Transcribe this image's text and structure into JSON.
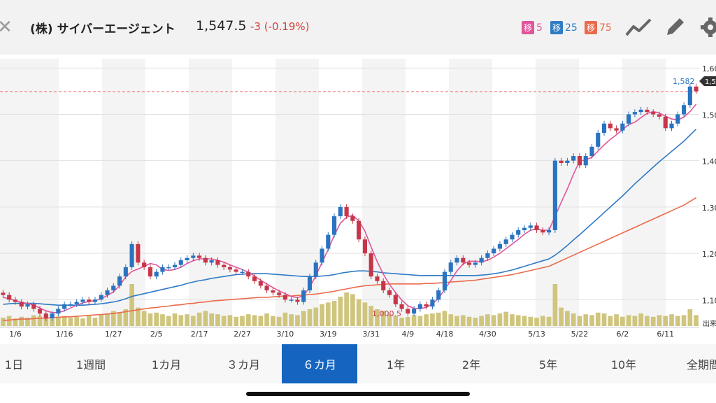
{
  "header": {
    "close_icon": "close-icon",
    "stock_name": "(株) サイバーエージェント",
    "price": "1,547.5",
    "change": "-3 (-0.19%)",
    "ma_badges": [
      {
        "tag": "移",
        "value": "5",
        "color": "#e0559c"
      },
      {
        "tag": "移",
        "value": "25",
        "color": "#2f7bc4"
      },
      {
        "tag": "移",
        "value": "75",
        "color": "#ea6b4b"
      }
    ],
    "tools": [
      "line-chart-icon",
      "pencil-icon",
      "gear-icon"
    ]
  },
  "annotations": {
    "high_label": "1,582",
    "low_label": "1,000.5",
    "volume_label": "出来",
    "current_tag": "1,5"
  },
  "chart_data": {
    "type": "candlestick",
    "x_ticks": [
      "1/6",
      "1/16",
      "1/27",
      "2/5",
      "2/17",
      "2/27",
      "3/10",
      "3/19",
      "3/31",
      "4/9",
      "4/18",
      "4/30",
      "5/13",
      "5/22",
      "6/2",
      "6/11"
    ],
    "y_ticks": [
      "1,60",
      "1,50",
      "1,40",
      "1,30",
      "1,20",
      "1,10"
    ],
    "y_tick_values": [
      1600,
      1500,
      1400,
      1300,
      1200,
      1100
    ],
    "ylim": [
      1040,
      1620
    ],
    "reference_price": 1550,
    "closes": [
      1110,
      1100,
      1095,
      1085,
      1090,
      1080,
      1070,
      1060,
      1070,
      1080,
      1090,
      1090,
      1095,
      1100,
      1095,
      1100,
      1110,
      1120,
      1130,
      1150,
      1170,
      1220,
      1180,
      1170,
      1150,
      1160,
      1170,
      1170,
      1175,
      1185,
      1190,
      1195,
      1190,
      1180,
      1185,
      1175,
      1170,
      1165,
      1160,
      1160,
      1150,
      1140,
      1130,
      1120,
      1115,
      1110,
      1100,
      1100,
      1095,
      1120,
      1150,
      1180,
      1210,
      1240,
      1280,
      1300,
      1280,
      1270,
      1230,
      1200,
      1150,
      1140,
      1120,
      1110,
      1090,
      1080,
      1070,
      1080,
      1090,
      1085,
      1100,
      1120,
      1160,
      1180,
      1190,
      1180,
      1175,
      1180,
      1190,
      1200,
      1210,
      1220,
      1230,
      1240,
      1250,
      1255,
      1260,
      1250,
      1245,
      1250,
      1400,
      1395,
      1400,
      1410,
      1390,
      1410,
      1430,
      1460,
      1480,
      1470,
      1465,
      1480,
      1500,
      1505,
      1510,
      1505,
      1500,
      1495,
      1470,
      1480,
      1500,
      1520,
      1560,
      1550
    ],
    "volumes": [
      10,
      12,
      9,
      11,
      10,
      13,
      12,
      10,
      9,
      11,
      12,
      10,
      11,
      9,
      12,
      10,
      14,
      15,
      18,
      16,
      20,
      50,
      22,
      18,
      15,
      16,
      14,
      12,
      15,
      13,
      14,
      12,
      16,
      18,
      15,
      14,
      12,
      13,
      11,
      12,
      14,
      13,
      12,
      15,
      12,
      11,
      16,
      14,
      13,
      18,
      20,
      22,
      26,
      28,
      30,
      35,
      40,
      38,
      32,
      28,
      24,
      20,
      18,
      14,
      12,
      10,
      11,
      13,
      12,
      14,
      15,
      16,
      18,
      14,
      12,
      13,
      11,
      10,
      12,
      14,
      13,
      15,
      17,
      14,
      13,
      12,
      11,
      10,
      12,
      11,
      50,
      22,
      18,
      15,
      12,
      14,
      13,
      16,
      15,
      12,
      14,
      11,
      13,
      12,
      15,
      12,
      11,
      13,
      12,
      14,
      12,
      13,
      20,
      13
    ],
    "ma5": [
      1105,
      1102,
      1098,
      1094,
      1092,
      1088,
      1082,
      1076,
      1072,
      1072,
      1076,
      1082,
      1088,
      1093,
      1096,
      1098,
      1102,
      1109,
      1117,
      1130,
      1149,
      1161,
      1166,
      1172,
      1178,
      1175,
      1165,
      1163,
      1165,
      1170,
      1178,
      1184,
      1188,
      1188,
      1188,
      1185,
      1181,
      1175,
      1170,
      1165,
      1159,
      1151,
      1142,
      1134,
      1126,
      1119,
      1113,
      1107,
      1104,
      1109,
      1127,
      1152,
      1180,
      1208,
      1239,
      1265,
      1278,
      1282,
      1270,
      1248,
      1214,
      1182,
      1155,
      1133,
      1115,
      1099,
      1087,
      1081,
      1081,
      1083,
      1091,
      1103,
      1122,
      1141,
      1162,
      1177,
      1183,
      1183,
      1182,
      1185,
      1192,
      1200,
      1210,
      1220,
      1230,
      1241,
      1250,
      1252,
      1250,
      1250,
      1280,
      1310,
      1339,
      1371,
      1399,
      1402,
      1407,
      1421,
      1434,
      1446,
      1456,
      1467,
      1478,
      1483,
      1493,
      1502,
      1506,
      1503,
      1496,
      1490,
      1488,
      1494,
      1506,
      1522
    ],
    "ma25": [
      1090,
      1091,
      1092,
      1092,
      1092,
      1092,
      1091,
      1090,
      1089,
      1088,
      1088,
      1088,
      1088,
      1088,
      1089,
      1090,
      1091,
      1093,
      1095,
      1098,
      1102,
      1107,
      1110,
      1113,
      1116,
      1119,
      1122,
      1125,
      1128,
      1131,
      1135,
      1138,
      1141,
      1143,
      1146,
      1148,
      1150,
      1152,
      1154,
      1155,
      1156,
      1156,
      1156,
      1156,
      1155,
      1154,
      1153,
      1152,
      1151,
      1150,
      1150,
      1150,
      1151,
      1152,
      1154,
      1157,
      1159,
      1161,
      1162,
      1162,
      1161,
      1160,
      1158,
      1157,
      1156,
      1155,
      1154,
      1153,
      1152,
      1152,
      1152,
      1152,
      1152,
      1152,
      1152,
      1152,
      1152,
      1152,
      1153,
      1154,
      1156,
      1158,
      1161,
      1164,
      1168,
      1172,
      1176,
      1180,
      1184,
      1188,
      1196,
      1206,
      1217,
      1229,
      1240,
      1252,
      1264,
      1276,
      1288,
      1300,
      1312,
      1324,
      1337,
      1350,
      1362,
      1374,
      1386,
      1398,
      1409,
      1420,
      1431,
      1442,
      1455,
      1468
    ],
    "ma75": [
      1055,
      1056,
      1057,
      1058,
      1058,
      1059,
      1060,
      1060,
      1061,
      1062,
      1063,
      1063,
      1064,
      1065,
      1066,
      1067,
      1068,
      1069,
      1070,
      1072,
      1074,
      1076,
      1078,
      1080,
      1082,
      1083,
      1085,
      1086,
      1088,
      1089,
      1091,
      1092,
      1094,
      1095,
      1097,
      1098,
      1099,
      1100,
      1101,
      1102,
      1103,
      1104,
      1105,
      1105,
      1106,
      1107,
      1108,
      1108,
      1109,
      1110,
      1111,
      1112,
      1114,
      1116,
      1118,
      1121,
      1123,
      1126,
      1128,
      1130,
      1131,
      1132,
      1133,
      1134,
      1134,
      1134,
      1134,
      1134,
      1134,
      1135,
      1135,
      1136,
      1137,
      1138,
      1139,
      1140,
      1141,
      1142,
      1144,
      1146,
      1148,
      1150,
      1152,
      1154,
      1157,
      1160,
      1163,
      1166,
      1169,
      1172,
      1178,
      1184,
      1190,
      1196,
      1202,
      1208,
      1214,
      1220,
      1226,
      1232,
      1238,
      1244,
      1250,
      1256,
      1262,
      1268,
      1274,
      1280,
      1286,
      1292,
      1298,
      1304,
      1312,
      1320
    ]
  },
  "tabs": [
    {
      "label": "1日",
      "active": false
    },
    {
      "label": "1週間",
      "active": false
    },
    {
      "label": "1カ月",
      "active": false
    },
    {
      "label": "３カ月",
      "active": false
    },
    {
      "label": "６カ月",
      "active": true
    },
    {
      "label": "1年",
      "active": false
    },
    {
      "label": "2年",
      "active": false
    },
    {
      "label": "5年",
      "active": false
    },
    {
      "label": "10年",
      "active": false
    },
    {
      "label": "全期間",
      "active": false
    }
  ]
}
